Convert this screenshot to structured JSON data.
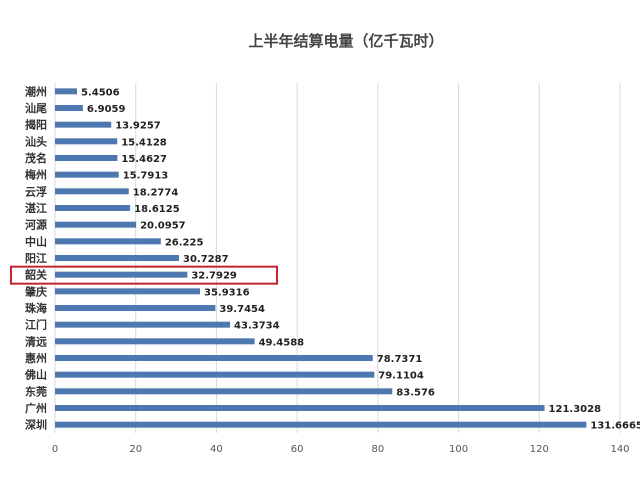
{
  "chart_data": {
    "type": "bar",
    "orientation": "horizontal",
    "title": "上半年结算电量（亿千瓦时）",
    "categories": [
      "潮州",
      "汕尾",
      "揭阳",
      "汕头",
      "茂名",
      "梅州",
      "云浮",
      "湛江",
      "河源",
      "中山",
      "阳江",
      "韶关",
      "肇庆",
      "珠海",
      "江门",
      "清远",
      "惠州",
      "佛山",
      "东莞",
      "广州",
      "深圳"
    ],
    "value_labels": [
      "5.4506",
      "6.9059",
      "13.9257",
      "15.4128",
      "15.4627",
      "15.7913",
      "18.2774",
      "18.6125",
      "20.0957",
      "26.225",
      "30.7287",
      "32.7929",
      "35.9316",
      "39.7454",
      "43.3734",
      "49.4588",
      "78.7371",
      "79.1104",
      "83.576",
      "121.3028",
      "131.6665"
    ],
    "values": [
      5.4506,
      6.9059,
      13.9257,
      15.4128,
      15.4627,
      15.7913,
      18.2774,
      18.6125,
      20.0957,
      26.225,
      30.7287,
      32.7929,
      35.9316,
      39.7454,
      43.3734,
      49.4588,
      78.7371,
      79.1104,
      83.576,
      121.3028,
      131.6665
    ],
    "xticks": [
      "0",
      "20",
      "40",
      "60",
      "80",
      "100",
      "120",
      "140"
    ],
    "xlim": [
      0,
      140
    ],
    "grid": true,
    "legend": "none",
    "highlighted_category": "韶关",
    "bar_color": "#4e78b0",
    "highlight_color": "#c0272d",
    "grid_color": "#d9d9d9"
  }
}
